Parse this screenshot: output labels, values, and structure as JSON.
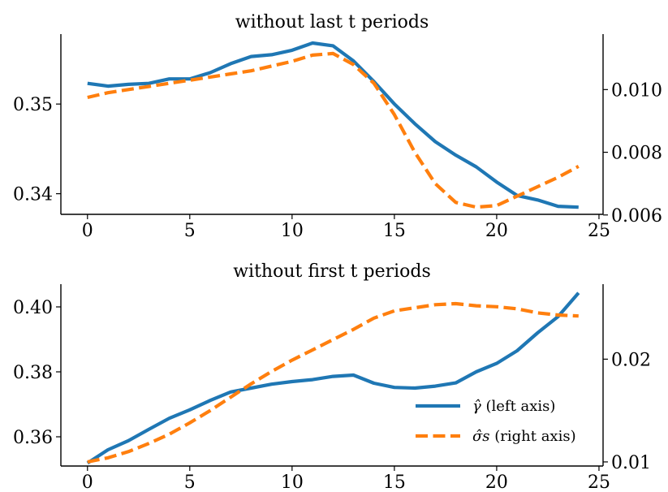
{
  "chart_data": [
    {
      "type": "line",
      "title": "without last t periods",
      "x": [
        0,
        1,
        2,
        3,
        4,
        5,
        6,
        7,
        8,
        9,
        10,
        11,
        12,
        13,
        14,
        15,
        16,
        17,
        18,
        19,
        20,
        21,
        22,
        23,
        24
      ],
      "series": [
        {
          "name": "γ̂ (left axis)",
          "axis": "left",
          "color": "#1f77b4",
          "style": "solid",
          "values": [
            0.3523,
            0.352,
            0.3522,
            0.3523,
            0.3528,
            0.3528,
            0.3535,
            0.3545,
            0.3553,
            0.3555,
            0.356,
            0.3568,
            0.3565,
            0.3548,
            0.3525,
            0.35,
            0.3478,
            0.3458,
            0.3443,
            0.343,
            0.3413,
            0.3398,
            0.3393,
            0.3386,
            0.3385
          ]
        },
        {
          "name": "σ̂s (right axis)",
          "axis": "right",
          "color": "#ff7f0e",
          "style": "dashed",
          "x": [
            0,
            1,
            2,
            3,
            4,
            5,
            6,
            7,
            8,
            9,
            10,
            11,
            12,
            13,
            14,
            15,
            16,
            17,
            18,
            19,
            20,
            21,
            22,
            23,
            24
          ],
          "values": [
            0.00975,
            0.0099,
            0.01,
            0.0101,
            0.0102,
            0.0103,
            0.0104,
            0.0105,
            0.0106,
            0.01075,
            0.0109,
            0.0111,
            0.01115,
            0.0108,
            0.0102,
            0.0092,
            0.008,
            0.007,
            0.0064,
            0.00625,
            0.0063,
            0.0066,
            0.0069,
            0.0072,
            0.00755
          ]
        }
      ],
      "xlim": [
        -1.3,
        25.2
      ],
      "xticks": [
        0,
        5,
        10,
        15,
        20,
        25
      ],
      "ylim_left": [
        0.3377,
        0.3578
      ],
      "yticks_left": [
        0.34,
        0.35
      ],
      "ylim_right": [
        0.00602,
        0.01177
      ],
      "yticks_right": [
        0.006,
        0.008,
        0.01
      ],
      "yticklabels_right": [
        "0.006",
        "0.008",
        "0.010"
      ]
    },
    {
      "type": "line",
      "title": "without first t periods",
      "x": [
        0,
        1,
        2,
        3,
        4,
        5,
        6,
        7,
        8,
        9,
        10,
        11,
        12,
        13,
        14,
        15,
        16,
        17,
        18,
        19,
        20,
        21,
        22,
        23,
        24
      ],
      "series": [
        {
          "name": "γ̂ (left axis)",
          "axis": "left",
          "color": "#1f77b4",
          "style": "solid",
          "values": [
            0.3519,
            0.356,
            0.3588,
            0.3623,
            0.3657,
            0.3683,
            0.3712,
            0.3738,
            0.375,
            0.3762,
            0.377,
            0.3776,
            0.3786,
            0.379,
            0.3765,
            0.3752,
            0.375,
            0.3756,
            0.3766,
            0.38,
            0.3826,
            0.3865,
            0.392,
            0.397,
            0.4043
          ]
        },
        {
          "name": "σ̂s (right axis)",
          "axis": "right",
          "color": "#ff7f0e",
          "style": "dashed",
          "values": [
            0.01,
            0.0104,
            0.011,
            0.0118,
            0.0127,
            0.0138,
            0.015,
            0.0163,
            0.0176,
            0.0188,
            0.0199,
            0.0209,
            0.0219,
            0.0229,
            0.024,
            0.0247,
            0.025,
            0.0253,
            0.0254,
            0.0252,
            0.0251,
            0.0249,
            0.0245,
            0.0243,
            0.0242
          ]
        }
      ],
      "xlim": [
        -1.3,
        25.2
      ],
      "xticks": [
        0,
        5,
        10,
        15,
        20,
        25
      ],
      "ylim_left": [
        0.351,
        0.407
      ],
      "yticks_left": [
        0.36,
        0.38,
        0.4
      ],
      "ylim_right": [
        0.0096,
        0.0273
      ],
      "yticks_right": [
        0.01,
        0.02
      ],
      "yticklabels_right": [
        "0.01",
        "0.02"
      ],
      "legend": {
        "placement": "lower-right",
        "entries": [
          {
            "label_symbol": "γ̂",
            "label_text": "(left axis)",
            "color": "#1f77b4",
            "style": "solid"
          },
          {
            "label_symbol": "σ̂s",
            "label_text": "(right axis)",
            "color": "#ff7f0e",
            "style": "dashed"
          }
        ]
      }
    }
  ]
}
